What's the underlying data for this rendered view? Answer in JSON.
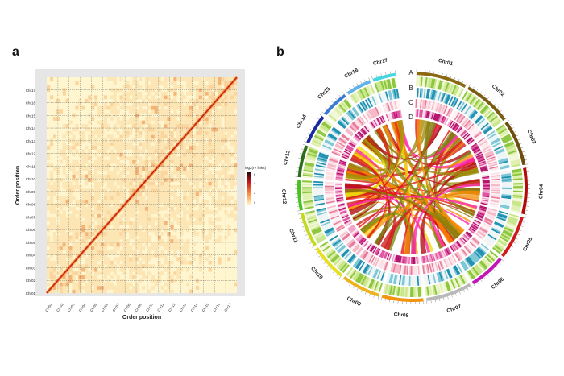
{
  "panels": {
    "a": {
      "label": "a",
      "ylabel": "Order position",
      "xlabel": "Order position",
      "legend_title": "log2(IV links)",
      "legend_ticks": [
        "6",
        "4",
        "2",
        "0"
      ],
      "chromosomes": [
        "Chr01",
        "Chr02",
        "Chr03",
        "Chr04",
        "Chr05",
        "Chr06",
        "Chr07",
        "Chr08",
        "Chr09",
        "Chr10",
        "Chr11",
        "Chr12",
        "Chr13",
        "Chr14",
        "Chr15",
        "Chr16",
        "Chr17"
      ],
      "colors": {
        "low": "#fff7d6",
        "mid": "#f6b36a",
        "high": "#d7301f",
        "max": "#3a0a0a"
      }
    },
    "b": {
      "label": "b",
      "track_labels": [
        "A",
        "B",
        "C",
        "D"
      ],
      "chromosomes": [
        {
          "name": "Chr01",
          "color": "#8c6a14"
        },
        {
          "name": "Chr02",
          "color": "#7a5c12"
        },
        {
          "name": "Chr03",
          "color": "#6e4e10"
        },
        {
          "name": "Chr04",
          "color": "#b40a0a"
        },
        {
          "name": "Chr05",
          "color": "#d11a1a"
        },
        {
          "name": "Chr06",
          "color": "#c217b8"
        },
        {
          "name": "Chr07",
          "color": "#b9b9b9"
        },
        {
          "name": "Chr08",
          "color": "#f29410"
        },
        {
          "name": "Chr09",
          "color": "#eeb21a"
        },
        {
          "name": "Chr10",
          "color": "#e6e020"
        },
        {
          "name": "Chr11",
          "color": "#c2d91c"
        },
        {
          "name": "Chr12",
          "color": "#48c21c"
        },
        {
          "name": "Chr13",
          "color": "#2c6e1a"
        },
        {
          "name": "Chr14",
          "color": "#1a2a9e"
        },
        {
          "name": "Chr15",
          "color": "#3b7bd6"
        },
        {
          "name": "Chr16",
          "color": "#5fb3e6"
        },
        {
          "name": "Chr17",
          "color": "#45d6e0"
        }
      ],
      "link_colors": [
        "#8a7a06",
        "#9c8a0a",
        "#b00a0a",
        "#e51212",
        "#ff1fb0",
        "#f29410",
        "#eedd10",
        "#7a8c14",
        "#d11a1a",
        "#ff8a00"
      ]
    }
  }
}
